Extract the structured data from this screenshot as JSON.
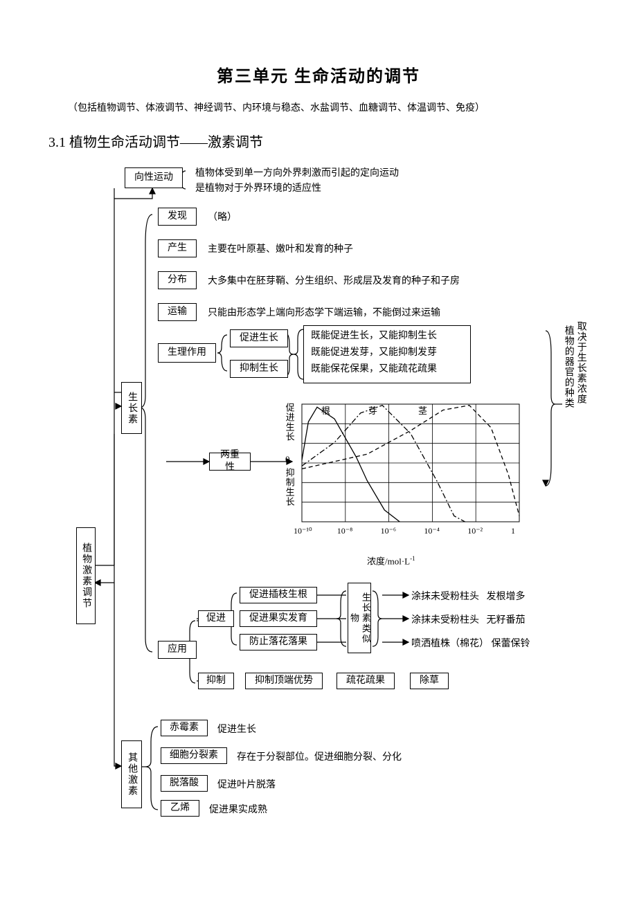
{
  "title": "第三单元    生命活动的调节",
  "intro": "（包括植物调节、体液调节、神经调节、内环境与稳态、水盐调节、血糖调节、体温调节、免疫）",
  "section_heading": "3.1 植物生命活动调节——激素调节",
  "spine": {
    "root": "植物激素调节",
    "top": "向性运动",
    "mid": "生长素",
    "bottom": "其他激素"
  },
  "xiangxing": {
    "line1": "植物体受到单一方向外界刺激而引起的定向运动",
    "line2": "是植物对于外界环境的适应性"
  },
  "auxin_rows": {
    "faxian": {
      "label": "发现",
      "text": "（略）"
    },
    "chansheng": {
      "label": "产生",
      "text": "主要在叶原基、嫩叶和发育的种子"
    },
    "fenbu": {
      "label": "分布",
      "text": "大多集中在胚芽鞘、分生组织、形成层及发育的种子和子房"
    },
    "yunshu": {
      "label": "运输",
      "text": "只能由形态学上端向形态学下端运输，不能倒过来运输"
    }
  },
  "shengli": {
    "label": "生理作用",
    "sub1": "促进生长",
    "sub2": "抑制生长",
    "line1": "既能促进生长，又能抑制生长",
    "line2": "既能促进发芽，又能抑制发芽",
    "line3": "既能保花保果，又能疏花疏果",
    "right_col1": "植物的器官的种类",
    "right_col2": "取决于生长素浓度"
  },
  "liangchong": {
    "label": "两重性",
    "y_top": "促进生长",
    "y_bot": "抑制生长",
    "zero": "0",
    "legend_gen": "根",
    "legend_ya": "芽",
    "legend_jing": "茎",
    "x_label": "浓度/mol·L",
    "x_sup": "-1",
    "ticks": [
      "10⁻¹⁰",
      "10⁻⁸",
      "10⁻⁶",
      "10⁻⁴",
      "10⁻²",
      "1"
    ]
  },
  "yingyong": {
    "label": "应用",
    "cujin": "促进",
    "yizhi": "抑制",
    "c1": "促进插枝生根",
    "c2": "促进果实发育",
    "c3": "防止落花落果",
    "mid_label": "生长素类似物",
    "r1a": "涂抹未受粉柱头",
    "r1b": "发根增多",
    "r2a": "涂抹未受粉柱头",
    "r2b": "无籽番茄",
    "r3a": "喷洒植株（棉花）",
    "r3b": "保蕾保铃",
    "y1": "抑制顶端优势",
    "y2": "疏花疏果",
    "y3": "除草"
  },
  "other": {
    "chimei": {
      "label": "赤霉素",
      "text": "促进生长"
    },
    "xibao": {
      "label": "细胞分裂素",
      "text": "存在于分裂部位。促进细胞分裂、分化"
    },
    "tuoluo": {
      "label": "脱落酸",
      "text": "促进叶片脱落"
    },
    "yixi": {
      "label": "乙烯",
      "text": "促进果实成熟"
    }
  },
  "chart": {
    "type": "line",
    "x_log_range": [
      -10,
      0
    ],
    "y_range": [
      -1,
      1
    ],
    "grid_step_x": 2,
    "grid_step_y": 0.333,
    "background_color": "#ffffff",
    "grid_color": "#000000",
    "line_color": "#000000",
    "line_width": 1.3,
    "series": {
      "root": {
        "style": "solid",
        "points": [
          [
            -10,
            0.05
          ],
          [
            -9.7,
            0.7
          ],
          [
            -9.3,
            0.95
          ],
          [
            -8.5,
            0.75
          ],
          [
            -7.5,
            0.1
          ],
          [
            -7,
            -0.3
          ],
          [
            -6.2,
            -0.8
          ],
          [
            -5.5,
            -1.0
          ]
        ]
      },
      "bud": {
        "style": "dashdot",
        "points": [
          [
            -10,
            -0.05
          ],
          [
            -8.5,
            0.35
          ],
          [
            -7.3,
            0.85
          ],
          [
            -6.3,
            0.98
          ],
          [
            -5,
            0.5
          ],
          [
            -3.8,
            -0.3
          ],
          [
            -3,
            -0.9
          ],
          [
            -2.5,
            -1.0
          ]
        ]
      },
      "stem": {
        "style": "dash",
        "points": [
          [
            -10,
            -0.1
          ],
          [
            -7,
            0.15
          ],
          [
            -5,
            0.55
          ],
          [
            -3.5,
            0.9
          ],
          [
            -2.3,
            0.98
          ],
          [
            -1.3,
            0.6
          ],
          [
            -0.5,
            -0.2
          ],
          [
            0,
            -0.9
          ]
        ]
      }
    }
  },
  "colors": {
    "text": "#000000",
    "bg": "#ffffff",
    "border": "#000000"
  }
}
